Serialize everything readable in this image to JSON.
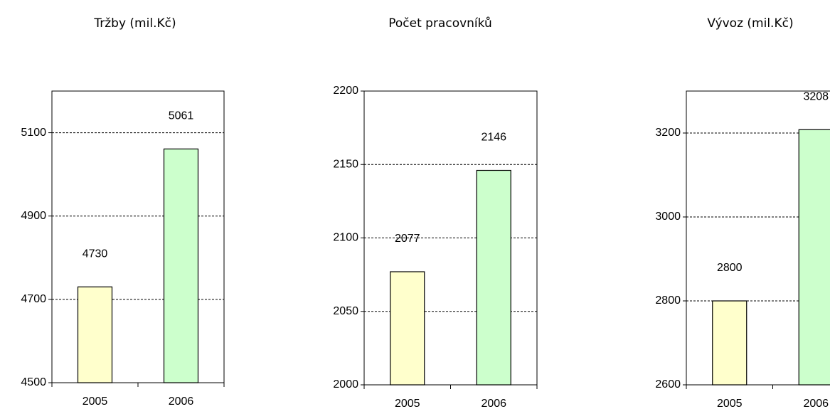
{
  "chart_data": [
    {
      "type": "bar",
      "title": "Tržby  (mil.Kč)",
      "categories": [
        "2005",
        "2006"
      ],
      "values": [
        4730,
        5061
      ],
      "colors": [
        "#ffffcc",
        "#ccffcc"
      ],
      "ylim": [
        4500,
        5200
      ],
      "yticks": [
        4500,
        4700,
        4900,
        5100
      ],
      "grid": true
    },
    {
      "type": "bar",
      "title": "Počet pracovníků",
      "categories": [
        "2005",
        "2006"
      ],
      "values": [
        2077,
        2146
      ],
      "colors": [
        "#ffffcc",
        "#ccffcc"
      ],
      "ylim": [
        2000,
        2200
      ],
      "yticks": [
        2000,
        2050,
        2100,
        2150,
        2200
      ],
      "grid": true
    },
    {
      "type": "bar",
      "title": "Vývoz  (mil.Kč)",
      "categories": [
        "2005",
        "2006"
      ],
      "values": [
        2800,
        3208
      ],
      "colors": [
        "#ffffcc",
        "#ccffcc"
      ],
      "ylim": [
        2600,
        3300
      ],
      "yticks": [
        2600,
        2800,
        3000,
        3200
      ],
      "grid": true
    }
  ]
}
